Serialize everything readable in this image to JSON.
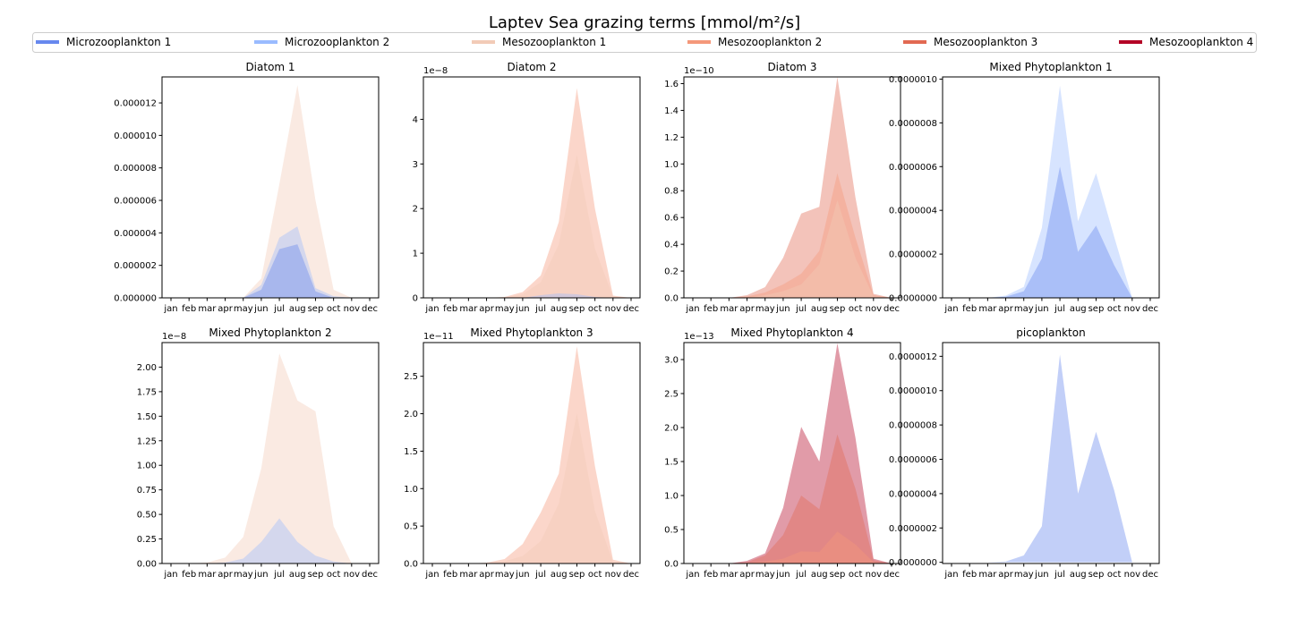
{
  "figure_title": "Laptev Sea grazing terms [mmol/m²/s]",
  "months": [
    "jan",
    "feb",
    "mar",
    "apr",
    "may",
    "jun",
    "jul",
    "aug",
    "sep",
    "oct",
    "nov",
    "dec"
  ],
  "colors": {
    "Microzooplankton 1": "#6788ee",
    "Microzooplankton 2": "#9abbff",
    "Mesozooplankton 1": "#f2cbb7",
    "Mesozooplankton 2": "#f4987a",
    "Mesozooplankton 3": "#e26952",
    "Mesozooplankton 4": "#b40426"
  },
  "chart_data": [
    {
      "type": "area",
      "title": "Diatom 1",
      "offset": "",
      "ylim": [
        0,
        1.36e-05
      ],
      "yticks": [
        "0.000000",
        "0.000002",
        "0.000004",
        "0.000006",
        "0.000008",
        "0.000010",
        "0.000012"
      ],
      "ytick_values": [
        0,
        2e-06,
        4e-06,
        6e-06,
        8e-06,
        1e-05,
        1.2e-05
      ],
      "series": [
        {
          "name": "Mesozooplankton 1",
          "values": [
            0,
            0,
            0,
            0,
            0,
            1.2e-06,
            7e-06,
            1.31e-05,
            6e-06,
            5e-07,
            0,
            0
          ]
        },
        {
          "name": "Microzooplankton 2",
          "values": [
            0,
            0,
            0,
            0,
            0,
            8e-07,
            3.7e-06,
            4.4e-06,
            6e-07,
            1e-07,
            0,
            0
          ]
        },
        {
          "name": "Microzooplankton 1",
          "values": [
            0,
            0,
            0,
            0,
            0,
            5e-07,
            3e-06,
            3.3e-06,
            4e-07,
            0,
            0,
            0
          ]
        }
      ]
    },
    {
      "type": "area",
      "title": "Diatom 2",
      "offset": "1e−8",
      "ylim": [
        0,
        4.95
      ],
      "yticks": [
        "0",
        "1",
        "2",
        "3",
        "4"
      ],
      "ytick_values": [
        0,
        1,
        2,
        3,
        4
      ],
      "series": [
        {
          "name": "Mesozooplankton 2",
          "values": [
            0,
            0,
            0,
            0,
            0.02,
            0.13,
            0.5,
            1.7,
            4.7,
            2.0,
            0.05,
            0
          ]
        },
        {
          "name": "Mesozooplankton 1",
          "values": [
            0,
            0,
            0,
            0,
            0.01,
            0.08,
            0.35,
            1.2,
            3.2,
            1.1,
            0.03,
            0
          ]
        },
        {
          "name": "Microzooplankton 2",
          "values": [
            0,
            0,
            0,
            0,
            0,
            0,
            0.06,
            0.1,
            0.08,
            0.02,
            0,
            0
          ]
        }
      ]
    },
    {
      "type": "area",
      "title": "Diatom 3",
      "offset": "1e−10",
      "ylim": [
        0,
        1.65
      ],
      "yticks": [
        "0.0",
        "0.2",
        "0.4",
        "0.6",
        "0.8",
        "1.0",
        "1.2",
        "1.4",
        "1.6"
      ],
      "ytick_values": [
        0,
        0.2,
        0.4,
        0.6,
        0.8,
        1.0,
        1.2,
        1.4,
        1.6
      ],
      "series": [
        {
          "name": "Mesozooplankton 3",
          "values": [
            0,
            0,
            0,
            0.02,
            0.08,
            0.3,
            0.63,
            0.68,
            1.65,
            0.75,
            0.03,
            0
          ]
        },
        {
          "name": "Mesozooplankton 2",
          "values": [
            0,
            0,
            0,
            0.01,
            0.04,
            0.1,
            0.18,
            0.35,
            0.93,
            0.45,
            0.02,
            0
          ]
        },
        {
          "name": "Mesozooplankton 1",
          "values": [
            0,
            0,
            0,
            0,
            0.02,
            0.05,
            0.1,
            0.25,
            0.73,
            0.3,
            0.01,
            0
          ]
        }
      ]
    },
    {
      "type": "area",
      "title": "Mixed Phytoplankton 1",
      "offset": "",
      "ylim": [
        0,
        1.01e-06
      ],
      "yticks": [
        "0.0000000",
        "0.0000002",
        "0.0000004",
        "0.0000006",
        "0.0000008",
        "0.0000010"
      ],
      "ytick_values": [
        0,
        2e-07,
        4e-07,
        6e-07,
        8e-07,
        1e-06
      ],
      "series": [
        {
          "name": "Microzooplankton 2",
          "values": [
            0,
            0,
            0,
            1e-08,
            5e-08,
            3.2e-07,
            9.7e-07,
            3.5e-07,
            5.7e-07,
            2.8e-07,
            0,
            0
          ]
        },
        {
          "name": "Microzooplankton 1",
          "values": [
            0,
            0,
            0,
            5e-09,
            3e-08,
            1.8e-07,
            6e-07,
            2.1e-07,
            3.3e-07,
            1.5e-07,
            0,
            0
          ]
        }
      ]
    },
    {
      "type": "area",
      "title": "Mixed Phytoplankton 2",
      "offset": "1e−8",
      "ylim": [
        0,
        2.25
      ],
      "yticks": [
        "0.00",
        "0.25",
        "0.50",
        "0.75",
        "1.00",
        "1.25",
        "1.50",
        "1.75",
        "2.00"
      ],
      "ytick_values": [
        0,
        0.25,
        0.5,
        0.75,
        1.0,
        1.25,
        1.5,
        1.75,
        2.0
      ],
      "series": [
        {
          "name": "Mesozooplankton 1",
          "values": [
            0,
            0,
            0.01,
            0.06,
            0.27,
            0.97,
            2.14,
            1.66,
            1.55,
            0.38,
            0,
            0
          ]
        },
        {
          "name": "Microzooplankton 2",
          "values": [
            0,
            0,
            0,
            0.01,
            0.05,
            0.22,
            0.46,
            0.22,
            0.08,
            0.02,
            0,
            0
          ]
        }
      ]
    },
    {
      "type": "area",
      "title": "Mixed Phytoplankton 3",
      "offset": "1e−11",
      "ylim": [
        0,
        2.95
      ],
      "yticks": [
        "0.0",
        "0.5",
        "1.0",
        "1.5",
        "2.0",
        "2.5"
      ],
      "ytick_values": [
        0,
        0.5,
        1.0,
        1.5,
        2.0,
        2.5
      ],
      "series": [
        {
          "name": "Mesozooplankton 2",
          "values": [
            0,
            0,
            0,
            0.01,
            0.06,
            0.26,
            0.68,
            1.2,
            2.9,
            1.3,
            0.05,
            0
          ]
        },
        {
          "name": "Mesozooplankton 1",
          "values": [
            0,
            0,
            0,
            0,
            0.03,
            0.1,
            0.3,
            0.8,
            2.0,
            0.7,
            0.02,
            0
          ]
        }
      ]
    },
    {
      "type": "area",
      "title": "Mixed Phytoplankton 4",
      "offset": "1e−13",
      "ylim": [
        0,
        3.25
      ],
      "yticks": [
        "0.0",
        "0.5",
        "1.0",
        "1.5",
        "2.0",
        "2.5",
        "3.0"
      ],
      "ytick_values": [
        0,
        0.5,
        1.0,
        1.5,
        2.0,
        2.5,
        3.0
      ],
      "series": [
        {
          "name": "Mesozooplankton 4",
          "values": [
            0,
            0,
            0,
            0.04,
            0.15,
            0.82,
            2.01,
            1.5,
            3.24,
            1.85,
            0.07,
            0
          ]
        },
        {
          "name": "Mesozooplankton 3",
          "values": [
            0,
            0,
            0,
            0.02,
            0.12,
            0.42,
            1.0,
            0.8,
            1.9,
            1.1,
            0.05,
            0
          ]
        },
        {
          "name": "Mesozooplankton 2",
          "values": [
            0,
            0,
            0,
            0.01,
            0.03,
            0.07,
            0.18,
            0.17,
            0.47,
            0.28,
            0.02,
            0
          ]
        }
      ]
    },
    {
      "type": "area",
      "title": "picoplankton",
      "offset": "",
      "ylim": [
        -7e-09,
        1.28e-06
      ],
      "yticks": [
        "0.0000000",
        "0.0000002",
        "0.0000004",
        "0.0000006",
        "0.0000008",
        "0.0000010",
        "0.0000012"
      ],
      "ytick_values": [
        0,
        2e-07,
        4e-07,
        6e-07,
        8e-07,
        1e-06,
        1.2e-06
      ],
      "series": [
        {
          "name": "Microzooplankton 1",
          "values": [
            0,
            0,
            0,
            5e-09,
            4e-08,
            2.1e-07,
            1.21e-06,
            4e-07,
            7.6e-07,
            4.2e-07,
            0,
            0
          ]
        }
      ]
    }
  ]
}
